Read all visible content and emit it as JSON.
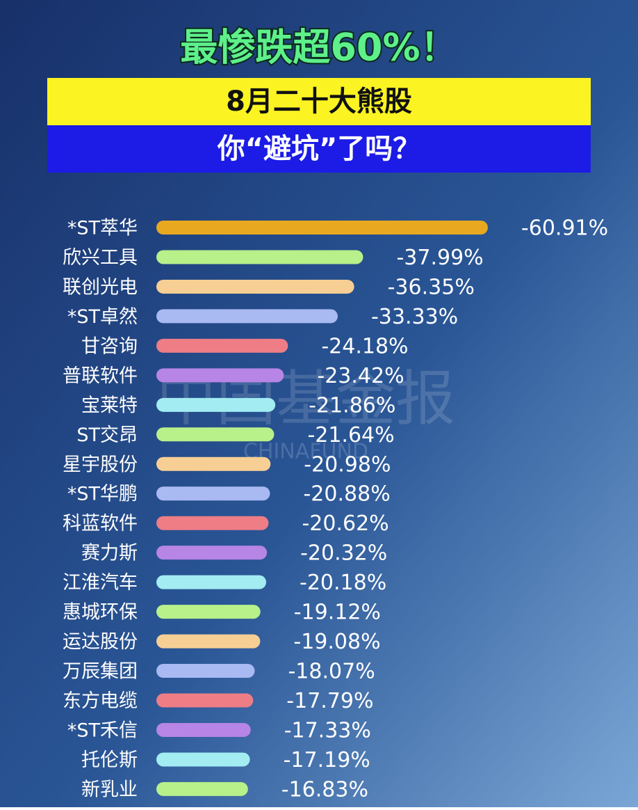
{
  "chart_data": {
    "type": "bar",
    "title": "最惨跌超60%！",
    "subtitle": "8月二十大熊股",
    "subtitle2": "你“避坑”了吗？",
    "watermark": [
      "中国基金报",
      "CHINAFUND"
    ],
    "categories": [
      "*ST萃华",
      "欣兴工具",
      "联创光电",
      "*ST卓然",
      "甘咨询",
      "普联软件",
      "宝莱特",
      "ST交昂",
      "星宇股份",
      "*ST华鹏",
      "科蓝软件",
      "赛力斯",
      "江淮汽车",
      "惠城环保",
      "运达股份",
      "万辰集团",
      "东方电缆",
      "*ST禾信",
      "托伦斯",
      "新乳业"
    ],
    "values": [
      -60.91,
      -37.99,
      -36.35,
      -33.33,
      -24.18,
      -23.42,
      -21.86,
      -21.64,
      -20.98,
      -20.88,
      -20.62,
      -20.32,
      -20.18,
      -19.12,
      -19.08,
      -18.07,
      -17.79,
      -17.33,
      -17.19,
      -16.83
    ],
    "value_labels": [
      "-60.91%",
      "-37.99%",
      "-36.35%",
      "-33.33%",
      "-24.18%",
      "-23.42%",
      "-21.86%",
      "-21.64%",
      "-20.98%",
      "-20.88%",
      "-20.62%",
      "-20.32%",
      "-20.18%",
      "-19.12%",
      "-19.08%",
      "-18.07%",
      "-17.79%",
      "-17.33%",
      "-17.19%",
      "-16.83%"
    ],
    "colors": [
      "#e8a920",
      "#b8f08a",
      "#f7cf95",
      "#a9b9f2",
      "#ee7d86",
      "#b685e6",
      "#a2ecf2",
      "#b8f08a",
      "#f7cf95",
      "#a9b9f2",
      "#ee7d86",
      "#b685e6",
      "#a2ecf2",
      "#b8f08a",
      "#f7cf95",
      "#a9b9f2",
      "#ee7d86",
      "#b685e6",
      "#a2ecf2",
      "#b8f08a"
    ]
  }
}
